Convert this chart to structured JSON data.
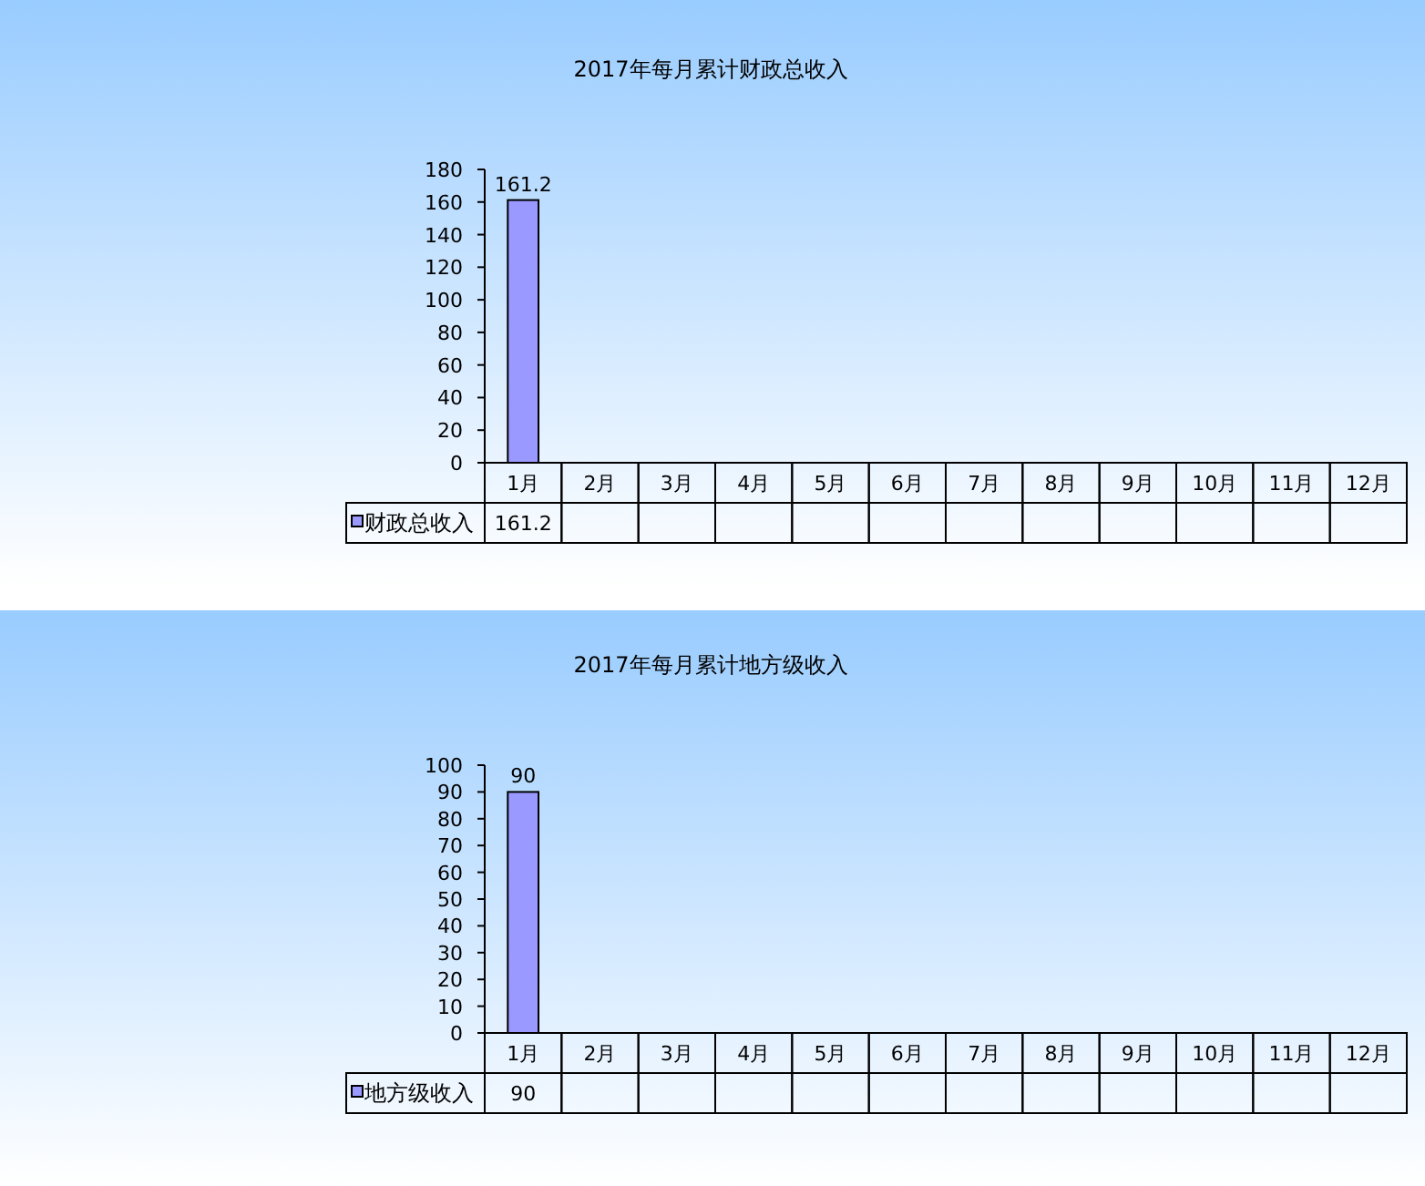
{
  "chart_data": [
    {
      "type": "bar",
      "title": "2017年每月累计财政总收入",
      "categories": [
        "1月",
        "2月",
        "3月",
        "4月",
        "5月",
        "6月",
        "7月",
        "8月",
        "9月",
        "10月",
        "11月",
        "12月"
      ],
      "series": [
        {
          "name": "财政总收入",
          "color": "#9999ff",
          "values": [
            161.2,
            null,
            null,
            null,
            null,
            null,
            null,
            null,
            null,
            null,
            null,
            null
          ]
        }
      ],
      "annotations": [
        "161.2"
      ],
      "ylim": [
        0,
        180
      ],
      "yticks": [
        0,
        20,
        40,
        60,
        80,
        100,
        120,
        140,
        160,
        180
      ],
      "data_labels": true,
      "legend": "bottom left",
      "grid": false
    },
    {
      "type": "bar",
      "title": "2017年每月累计地方级收入",
      "categories": [
        "1月",
        "2月",
        "3月",
        "4月",
        "5月",
        "6月",
        "7月",
        "8月",
        "9月",
        "10月",
        "11月",
        "12月"
      ],
      "series": [
        {
          "name": "地方级收入",
          "color": "#9999ff",
          "values": [
            90,
            null,
            null,
            null,
            null,
            null,
            null,
            null,
            null,
            null,
            null,
            null
          ]
        }
      ],
      "annotations": [
        "90"
      ],
      "ylim": [
        0,
        100
      ],
      "yticks": [
        0,
        10,
        20,
        30,
        40,
        50,
        60,
        70,
        80,
        90,
        100
      ],
      "data_labels": true,
      "legend": "bottom left",
      "grid": false
    }
  ]
}
